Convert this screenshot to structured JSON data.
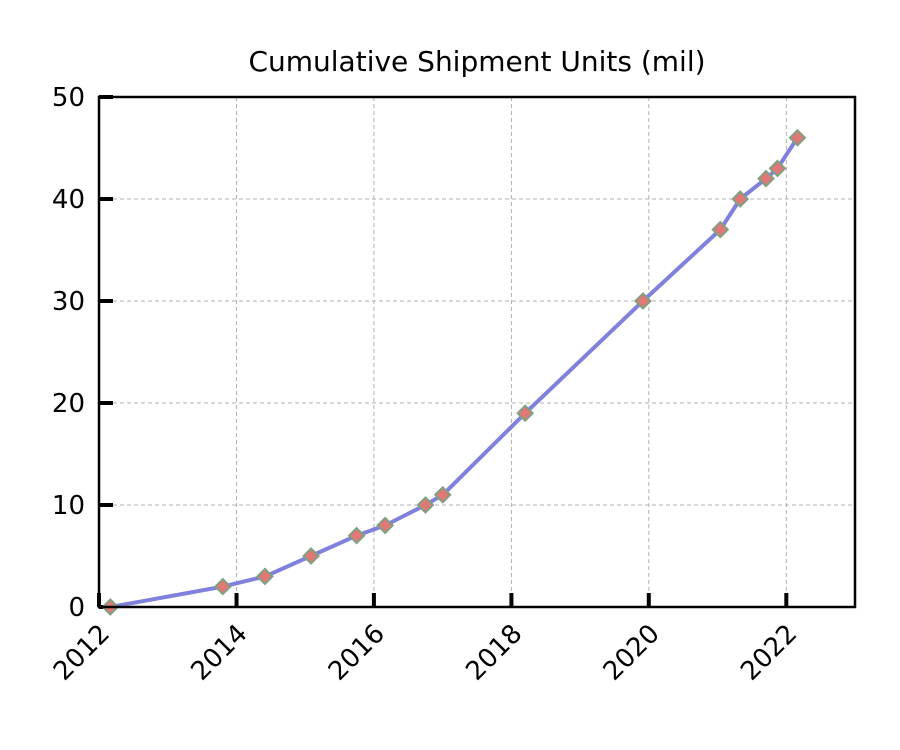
{
  "chart_data": {
    "type": "line",
    "title": "Cumulative Shipment Units (mil)",
    "xlabel": "",
    "ylabel": "",
    "x_axis_type": "date",
    "xlim": [
      "2012-01-01",
      "2023-01-01"
    ],
    "ylim": [
      0,
      50
    ],
    "x_ticks": [
      "2012",
      "2014",
      "2016",
      "2018",
      "2020",
      "2022"
    ],
    "y_ticks": [
      "0",
      "10",
      "20",
      "30",
      "40",
      "50"
    ],
    "grid": true,
    "legend": "none",
    "line_color": "#8080dd",
    "marker_fill": "#e07878",
    "marker_edge": "#80a080",
    "marker": "diamond",
    "series": [
      {
        "x": [
          "2012-03-01",
          "2013-10-20",
          "2014-06-01",
          "2015-02-01",
          "2015-10-01",
          "2016-03-01",
          "2016-10-01",
          "2017-01-01",
          "2018-03-15",
          "2019-12-01",
          "2021-01-15",
          "2021-05-01",
          "2021-09-15",
          "2021-11-15",
          "2022-03-01"
        ],
        "values": [
          0,
          2,
          3,
          5,
          7,
          8,
          10,
          11,
          19,
          30,
          37,
          40,
          42,
          43,
          46
        ]
      }
    ]
  }
}
